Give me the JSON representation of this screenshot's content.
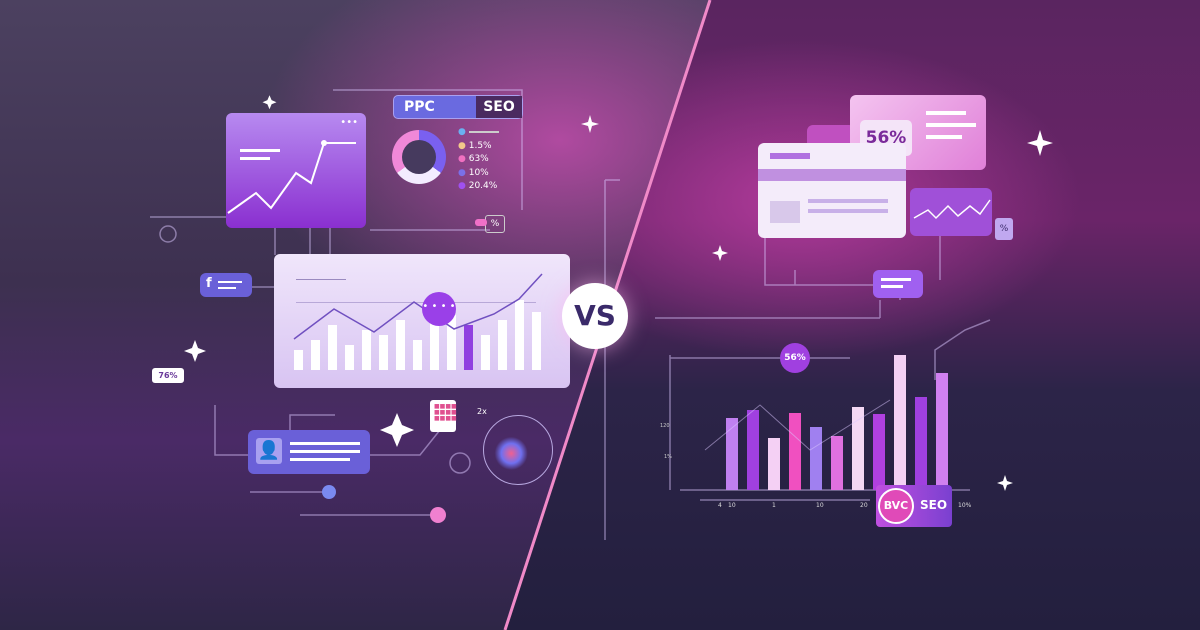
{
  "center": {
    "vs_label": "VS"
  },
  "left": {
    "toggle": {
      "ppc": "PPC",
      "seo": "SEO"
    },
    "legend": [
      "1.5%",
      "63%",
      "10%",
      "20.4%"
    ],
    "percent_tag": "%",
    "small_badge": "76%",
    "arrow_label": "2x",
    "colors": {
      "accent": "#9b5cf0",
      "pink": "#f06ac8"
    }
  },
  "right": {
    "card_percent": "56%",
    "small_percent": "%",
    "chart_bubble": "56%",
    "y_ticks": [
      "120",
      "1%"
    ],
    "x_labels": [
      "4",
      "10",
      "1",
      "10",
      "20",
      "10%"
    ],
    "badge": {
      "bvc": "BVC",
      "seo": "SEO"
    }
  }
}
